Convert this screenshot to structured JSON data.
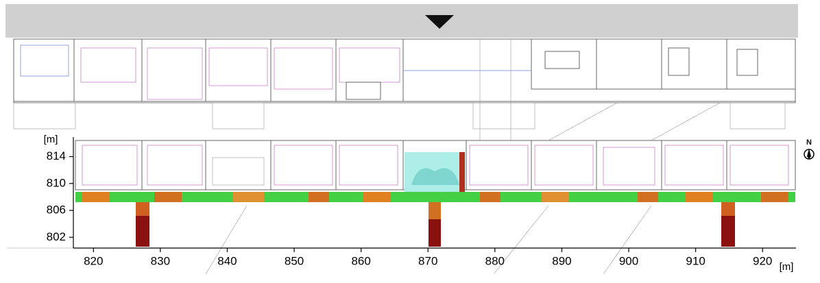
{
  "plan": {
    "x_unit": "[m]",
    "y_unit": "[m]",
    "xlim": [
      817,
      925
    ],
    "ylim": [
      800.5,
      816.5
    ],
    "xticks": [
      820,
      830,
      840,
      850,
      860,
      870,
      880,
      890,
      900,
      910,
      920
    ],
    "yticks": [
      802,
      806,
      810,
      814
    ],
    "north": "N"
  }
}
